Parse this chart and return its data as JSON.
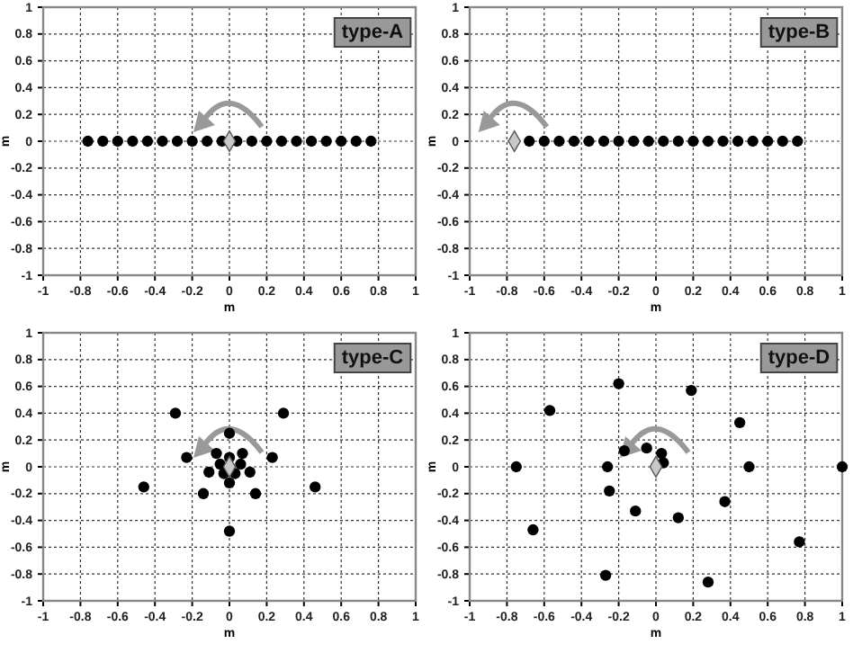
{
  "chart_data": [
    {
      "type": "scatter",
      "xlabel": "m",
      "ylabel": "m",
      "annotations": [
        "type-A"
      ],
      "grid": true,
      "xlim": [
        -1,
        1
      ],
      "ylim": [
        -1,
        1
      ],
      "xticks": [
        -1,
        -0.8,
        -0.6,
        -0.4,
        -0.2,
        0,
        0.2,
        0.4,
        0.6,
        0.8,
        1
      ],
      "yticks": [
        -1,
        -0.8,
        -0.6,
        -0.4,
        -0.2,
        0,
        0.2,
        0.4,
        0.6,
        0.8,
        1
      ],
      "series": [
        {
          "color": "#000000",
          "marker": "circle",
          "x": [
            -0.76,
            -0.68,
            -0.6,
            -0.52,
            -0.44,
            -0.36,
            -0.28,
            -0.2,
            -0.12,
            -0.04,
            0.04,
            0.12,
            0.2,
            0.28,
            0.36,
            0.44,
            0.52,
            0.6,
            0.68,
            0.76
          ],
          "values": [
            0,
            0,
            0,
            0,
            0,
            0,
            0,
            0,
            0,
            0,
            0,
            0,
            0,
            0,
            0,
            0,
            0,
            0,
            0,
            0
          ]
        },
        {
          "color": "#c8c8c8",
          "marker": "diamond",
          "x": [
            0
          ],
          "values": [
            0
          ]
        }
      ]
    },
    {
      "type": "scatter",
      "xlabel": "m",
      "ylabel": "m",
      "annotations": [
        "type-B"
      ],
      "grid": true,
      "xlim": [
        -1,
        1
      ],
      "ylim": [
        -1,
        1
      ],
      "xticks": [
        -1,
        -0.8,
        -0.6,
        -0.4,
        -0.2,
        0,
        0.2,
        0.4,
        0.6,
        0.8,
        1
      ],
      "yticks": [
        -1,
        -0.8,
        -0.6,
        -0.4,
        -0.2,
        0,
        0.2,
        0.4,
        0.6,
        0.8,
        1
      ],
      "series": [
        {
          "color": "#000000",
          "marker": "circle",
          "x": [
            -0.68,
            -0.6,
            -0.52,
            -0.44,
            -0.36,
            -0.28,
            -0.2,
            -0.12,
            -0.04,
            0.04,
            0.12,
            0.2,
            0.28,
            0.36,
            0.44,
            0.52,
            0.6,
            0.68,
            0.76
          ],
          "values": [
            0,
            0,
            0,
            0,
            0,
            0,
            0,
            0,
            0,
            0,
            0,
            0,
            0,
            0,
            0,
            0,
            0,
            0,
            0
          ]
        },
        {
          "color": "#c8c8c8",
          "marker": "diamond",
          "x": [
            -0.76
          ],
          "values": [
            0
          ]
        }
      ]
    },
    {
      "type": "scatter",
      "xlabel": "m",
      "ylabel": "m",
      "annotations": [
        "type-C"
      ],
      "grid": true,
      "xlim": [
        -1,
        1
      ],
      "ylim": [
        -1,
        1
      ],
      "xticks": [
        -1,
        -0.8,
        -0.6,
        -0.4,
        -0.2,
        0,
        0.2,
        0.4,
        0.6,
        0.8,
        1
      ],
      "yticks": [
        -1,
        -0.8,
        -0.6,
        -0.4,
        -0.2,
        0,
        0.2,
        0.4,
        0.6,
        0.8,
        1
      ],
      "series": [
        {
          "color": "#000000",
          "marker": "circle",
          "x": [
            -0.29,
            0.29,
            0,
            -0.23,
            0.23,
            -0.07,
            0.07,
            -0.05,
            0.06,
            0,
            -0.11,
            0.11,
            -0.03,
            0.03,
            0,
            -0.46,
            0.46,
            -0.14,
            0.14,
            0
          ],
          "values": [
            0.4,
            0.4,
            0.25,
            0.07,
            0.07,
            0.1,
            0.1,
            0.02,
            0.02,
            0.07,
            -0.04,
            -0.04,
            -0.05,
            -0.05,
            -0.12,
            -0.15,
            -0.15,
            -0.2,
            -0.2,
            -0.48
          ]
        },
        {
          "color": "#c8c8c8",
          "marker": "diamond",
          "x": [
            0
          ],
          "values": [
            0
          ]
        }
      ]
    },
    {
      "type": "scatter",
      "xlabel": "m",
      "ylabel": "m",
      "annotations": [
        "type-D"
      ],
      "grid": true,
      "xlim": [
        -1,
        1
      ],
      "ylim": [
        -1,
        1
      ],
      "xticks": [
        -1,
        -0.8,
        -0.6,
        -0.4,
        -0.2,
        0,
        0.2,
        0.4,
        0.6,
        0.8,
        1
      ],
      "yticks": [
        -1,
        -0.8,
        -0.6,
        -0.4,
        -0.2,
        0,
        0.2,
        0.4,
        0.6,
        0.8,
        1
      ],
      "series": [
        {
          "color": "#000000",
          "marker": "circle",
          "x": [
            -0.2,
            0.19,
            -0.57,
            0.45,
            -0.17,
            -0.05,
            0.03,
            0.04,
            -0.75,
            -0.26,
            0.5,
            1,
            -0.25,
            -0.11,
            0.12,
            0.37,
            -0.66,
            0.77,
            -0.27,
            0.28
          ],
          "values": [
            0.62,
            0.57,
            0.42,
            0.33,
            0.12,
            0.14,
            0.1,
            0.03,
            0,
            0,
            0,
            0,
            -0.18,
            -0.33,
            -0.38,
            -0.26,
            -0.47,
            -0.56,
            -0.81,
            -0.86
          ]
        },
        {
          "color": "#c8c8c8",
          "marker": "diamond",
          "x": [
            0
          ],
          "values": [
            0
          ]
        }
      ]
    }
  ]
}
